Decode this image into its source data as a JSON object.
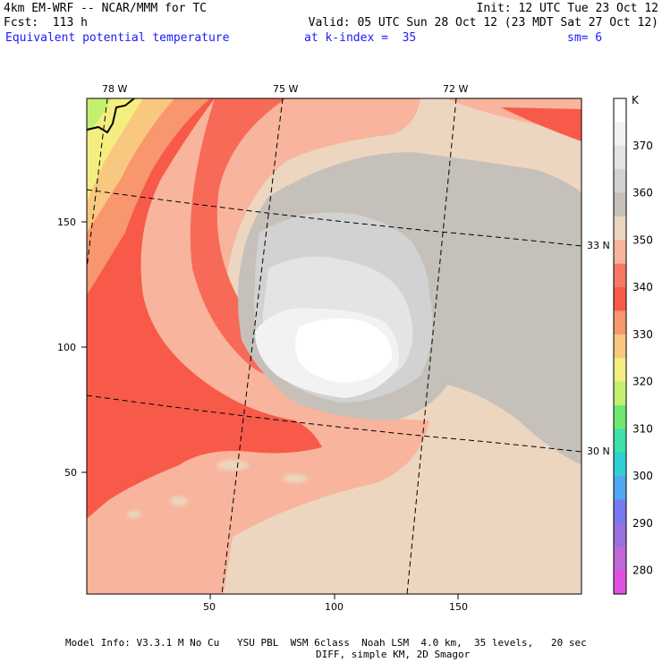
{
  "header": {
    "line1_left": "4km EM-WRF -- NCAR/MMM for TC",
    "line1_right": "Init: 12 UTC Tue 23 Oct 12",
    "line2_left": "Fcst:  113 h",
    "line2_right": "Valid: 05 UTC Sun 28 Oct 12 (23 MDT Sat 27 Oct 12)",
    "field_name": "Equivalent potential temperature",
    "level": "at k-index =  35",
    "smoothing": "sm= 6"
  },
  "map": {
    "lon_labels": [
      "78 W",
      "75 W",
      "72 W"
    ],
    "lat_labels": [
      "33 N",
      "30 N"
    ],
    "x_ticks": [
      "50",
      "100",
      "150"
    ],
    "y_ticks": [
      "150",
      "100",
      "50"
    ]
  },
  "colorbar": {
    "unit": "K",
    "levels": [
      "370",
      "360",
      "350",
      "340",
      "330",
      "320",
      "310",
      "300",
      "290",
      "280"
    ],
    "colors": [
      "#ffffff",
      "#f2f2f2",
      "#e4e4e4",
      "#d2d2d2",
      "#c6c0ba",
      "#ecd6c0",
      "#f8b49c",
      "#f87868",
      "#f85a4a",
      "#f8966e",
      "#f8c880",
      "#f4ee80",
      "#c4f070",
      "#70e870",
      "#40e0a8",
      "#30d0d0",
      "#50a8f0",
      "#7878f0",
      "#9870e0",
      "#c068d8",
      "#e050e0"
    ]
  },
  "footer": {
    "line1": "Model Info: V3.3.1 M No Cu   YSU PBL  WSM 6class  Noah LSM  4.0 km,  35 levels,   20 sec",
    "line2": "DIFF, simple KM, 2D Smagor"
  }
}
